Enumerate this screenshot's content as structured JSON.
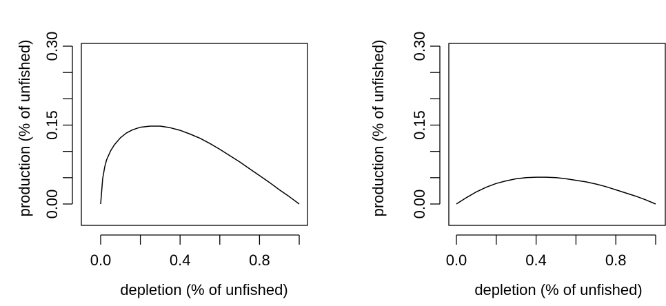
{
  "chart_data": [
    {
      "type": "line",
      "xlabel": "depletion (% of unfished)",
      "ylabel": "production (% of unfished)",
      "xlim": [
        0,
        1
      ],
      "ylim": [
        0,
        0.3
      ],
      "xticks": [
        0.0,
        0.2,
        0.4,
        0.6,
        0.8,
        1.0
      ],
      "xtick_labels": [
        "0.0",
        "",
        "0.4",
        "",
        "0.8",
        ""
      ],
      "yticks": [
        0.0,
        0.05,
        0.1,
        0.15,
        0.2,
        0.25,
        0.3
      ],
      "ytick_labels": [
        "0.00",
        "",
        "",
        "0.15",
        "",
        "",
        "0.30"
      ],
      "grid": false,
      "series": [
        {
          "x": [
            0.0,
            0.01,
            0.02,
            0.03,
            0.05,
            0.07,
            0.1,
            0.13,
            0.16,
            0.2,
            0.25,
            0.3,
            0.35,
            0.4,
            0.45,
            0.5,
            0.55,
            0.6,
            0.65,
            0.7,
            0.75,
            0.8,
            0.85,
            0.9,
            0.95,
            1.0
          ],
          "y": [
            0.0,
            0.048,
            0.07,
            0.084,
            0.101,
            0.113,
            0.126,
            0.135,
            0.141,
            0.146,
            0.148,
            0.148,
            0.145,
            0.14,
            0.133,
            0.125,
            0.115,
            0.104,
            0.092,
            0.08,
            0.067,
            0.054,
            0.041,
            0.027,
            0.014,
            0.0
          ]
        }
      ]
    },
    {
      "type": "line",
      "xlabel": "depletion (% of unfished)",
      "ylabel": "production (% of unfished)",
      "xlim": [
        0,
        1
      ],
      "ylim": [
        0,
        0.3
      ],
      "xticks": [
        0.0,
        0.2,
        0.4,
        0.6,
        0.8,
        1.0
      ],
      "xtick_labels": [
        "0.0",
        "",
        "0.4",
        "",
        "0.8",
        ""
      ],
      "yticks": [
        0.0,
        0.05,
        0.1,
        0.15,
        0.2,
        0.25,
        0.3
      ],
      "ytick_labels": [
        "0.00",
        "",
        "",
        "0.15",
        "",
        "",
        "0.30"
      ],
      "grid": false,
      "series": [
        {
          "x": [
            0.0,
            0.02,
            0.05,
            0.1,
            0.15,
            0.2,
            0.25,
            0.3,
            0.35,
            0.4,
            0.45,
            0.5,
            0.55,
            0.6,
            0.65,
            0.7,
            0.75,
            0.8,
            0.85,
            0.9,
            0.95,
            1.0
          ],
          "y": [
            0.0,
            0.005,
            0.012,
            0.023,
            0.032,
            0.039,
            0.044,
            0.048,
            0.05,
            0.051,
            0.051,
            0.05,
            0.048,
            0.045,
            0.042,
            0.038,
            0.033,
            0.027,
            0.021,
            0.015,
            0.008,
            0.0
          ]
        }
      ]
    }
  ]
}
